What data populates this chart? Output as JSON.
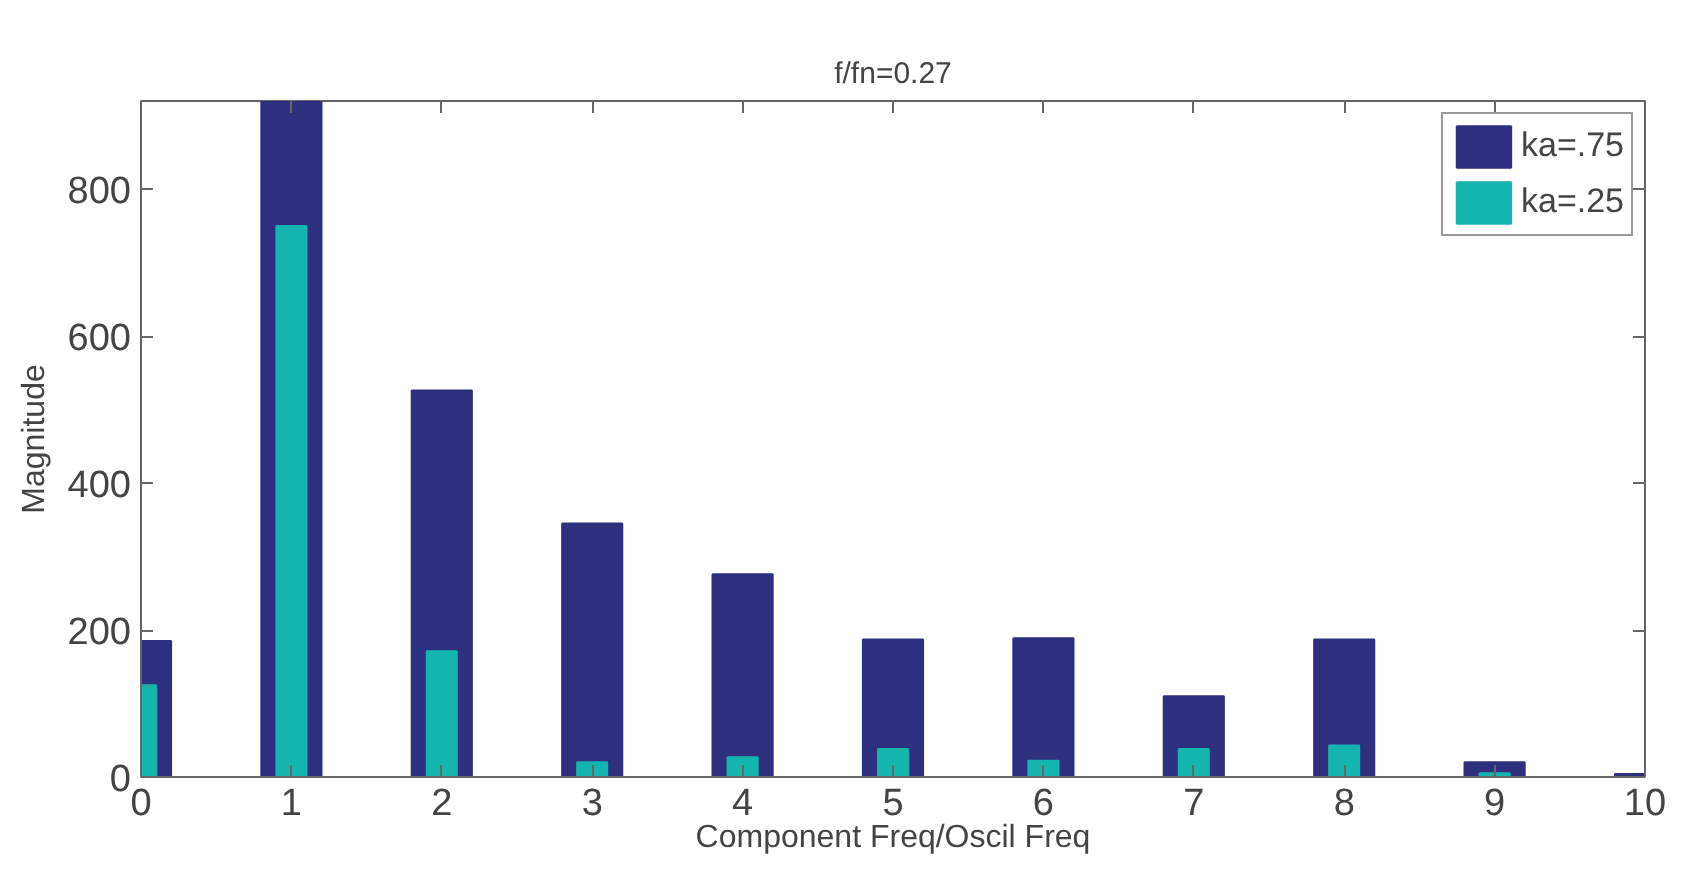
{
  "chart_data": {
    "type": "bar",
    "title": "f/fn=0.27",
    "xlabel": "Component Freq/Oscil Freq",
    "ylabel": "Magnitude",
    "x": [
      0,
      1,
      2,
      3,
      4,
      5,
      6,
      7,
      8,
      9,
      10
    ],
    "series": [
      {
        "name": "ka=.75",
        "color": "#2f2f7f",
        "values": [
          185,
          920,
          526,
          345,
          276,
          187,
          189,
          110,
          187,
          20,
          4
        ]
      },
      {
        "name": "ka=.25",
        "color": "#14b5ae",
        "values": [
          125,
          750,
          171,
          20,
          27,
          38,
          22,
          38,
          43,
          5,
          0
        ]
      }
    ],
    "xlim": [
      0,
      10
    ],
    "ylim": [
      0,
      920
    ],
    "xticks": [
      0,
      1,
      2,
      3,
      4,
      5,
      6,
      7,
      8,
      9,
      10
    ],
    "yticks": [
      0,
      200,
      400,
      600,
      800
    ],
    "grid": false,
    "legend": "top right"
  }
}
